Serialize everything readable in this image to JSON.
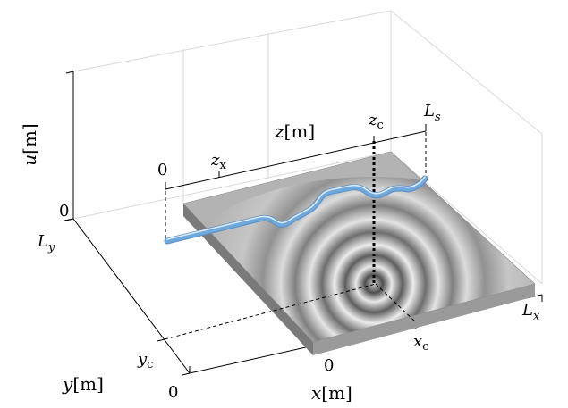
{
  "labels": {
    "u_axis": {
      "var": "u",
      "unit": "[m]"
    },
    "y_axis": {
      "var": "y",
      "unit": "[m]"
    },
    "x_axis": {
      "var": "x",
      "unit": "[m]"
    },
    "z_axis": {
      "var": "z",
      "unit": "[m]"
    },
    "u_zero": "0",
    "y_zero": "0",
    "x_zero": "0",
    "z_zero": "0",
    "L_y": {
      "base": "L",
      "sub": "y"
    },
    "L_x": {
      "base": "L",
      "sub": "x"
    },
    "L_s": {
      "base": "L",
      "sub": "s"
    },
    "y_c": {
      "base": "y",
      "sub": "c"
    },
    "x_c": {
      "base": "x",
      "sub": "c"
    },
    "z_c": {
      "base": "z",
      "sub": "c"
    },
    "z_x": {
      "base": "z",
      "sub": "x"
    }
  },
  "colors": {
    "plate_top": "#b3b3b3",
    "plate_side": "#7a7a7a",
    "plate_front": "#9a9a9a",
    "cable": "#6fa8dc",
    "cable_highlight": "#dbeaf7",
    "grid": "#d9d9d9"
  }
}
